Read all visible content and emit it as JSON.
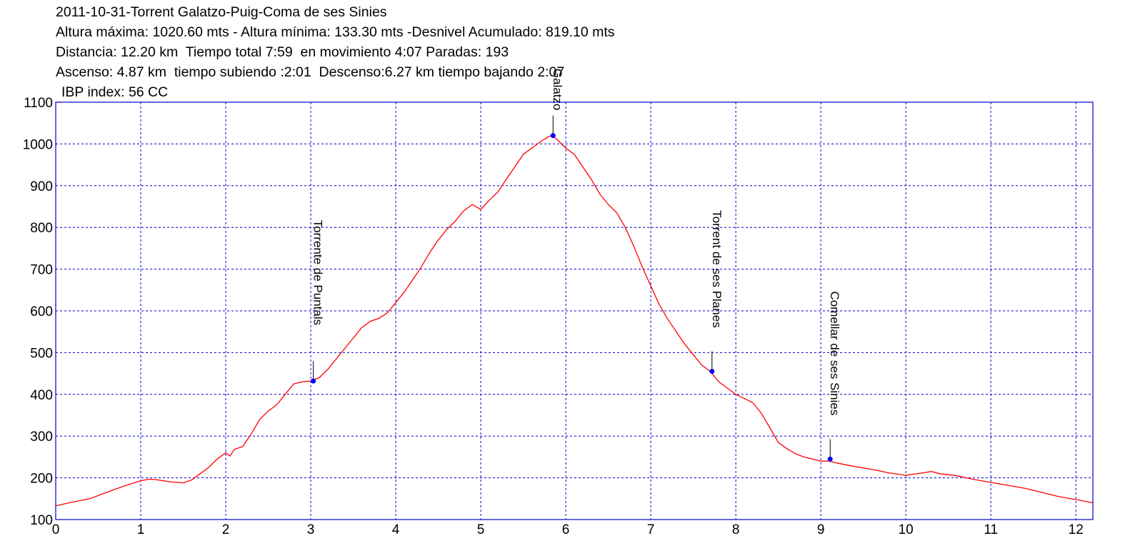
{
  "header": {
    "line1": "2011-10-31-Torrent Galatzo-Puig-Coma de ses Sinies",
    "line2": "Altura máxima: 1020.60 mts - Altura mínima: 133.30 mts -Desnivel Acumulado: 819.10 mts",
    "line3": "Distancia: 12.20 km  Tiempo total 7:59  en movimiento 4:07 Paradas: 193",
    "line4": "Ascenso: 4.87 km  tiempo subiendo :2:01  Descenso:6.27 km tiempo bajando 2:07",
    "line5": "IBP index: 56 CC"
  },
  "colors": {
    "profile_line": "#ff0000",
    "grid": "#0000cc",
    "frame": "#0000cc",
    "waypoint": "#0000ff"
  },
  "chart_data": {
    "type": "line",
    "title": "2011-10-31-Torrent Galatzo-Puig-Coma de ses Sinies",
    "xlabel": "",
    "ylabel": "",
    "xlim": [
      0,
      12.2
    ],
    "ylim": [
      100,
      1100
    ],
    "x_ticks": [
      "0",
      "1",
      "2",
      "3",
      "4",
      "5",
      "6",
      "7",
      "8",
      "9",
      "10",
      "11",
      "12"
    ],
    "y_ticks": [
      "100",
      "200",
      "300",
      "400",
      "500",
      "600",
      "700",
      "800",
      "900",
      "1000",
      "1100"
    ],
    "grid": true,
    "series": [
      {
        "x": [
          0,
          0.2,
          0.4,
          0.6,
          0.8,
          1.0,
          1.1,
          1.2,
          1.35,
          1.5,
          1.6,
          1.7,
          1.8,
          1.9,
          2.0,
          2.05,
          2.1,
          2.2,
          2.3,
          2.4,
          2.5,
          2.6,
          2.7,
          2.8,
          2.9,
          3.0,
          3.1,
          3.2,
          3.3,
          3.4,
          3.5,
          3.6,
          3.7,
          3.8,
          3.9,
          4.0,
          4.1,
          4.2,
          4.3,
          4.4,
          4.5,
          4.6,
          4.7,
          4.8,
          4.9,
          5.0,
          5.1,
          5.2,
          5.3,
          5.4,
          5.5,
          5.6,
          5.7,
          5.8,
          5.85,
          5.9,
          6.0,
          6.1,
          6.2,
          6.3,
          6.4,
          6.5,
          6.6,
          6.7,
          6.8,
          6.9,
          7.0,
          7.1,
          7.2,
          7.3,
          7.4,
          7.5,
          7.6,
          7.7,
          7.8,
          7.9,
          8.0,
          8.1,
          8.2,
          8.3,
          8.4,
          8.5,
          8.6,
          8.7,
          8.8,
          8.9,
          9.0,
          9.1,
          9.2,
          9.4,
          9.6,
          9.8,
          10.0,
          10.2,
          10.3,
          10.4,
          10.6,
          10.8,
          11.0,
          11.2,
          11.4,
          11.6,
          11.8,
          12.0,
          12.2
        ],
        "values": [
          133,
          142,
          150,
          165,
          180,
          193,
          197,
          195,
          190,
          188,
          195,
          210,
          225,
          245,
          260,
          252,
          268,
          275,
          305,
          340,
          360,
          375,
          400,
          425,
          430,
          432,
          440,
          460,
          485,
          510,
          535,
          560,
          575,
          582,
          595,
          620,
          645,
          675,
          705,
          740,
          770,
          795,
          815,
          840,
          855,
          843,
          865,
          885,
          915,
          945,
          975,
          990,
          1005,
          1018,
          1020,
          1010,
          990,
          975,
          945,
          915,
          880,
          855,
          835,
          800,
          755,
          705,
          660,
          615,
          580,
          550,
          520,
          495,
          470,
          455,
          430,
          415,
          400,
          390,
          380,
          355,
          320,
          285,
          270,
          258,
          250,
          245,
          240,
          240,
          235,
          227,
          220,
          212,
          206,
          212,
          215,
          210,
          205,
          196,
          189,
          182,
          175,
          165,
          155,
          148,
          140
        ]
      }
    ],
    "waypoints": [
      {
        "name": "Torrente  de  Puntals",
        "x": 3.03,
        "y": 432
      },
      {
        "name": "Galatzo",
        "x": 5.85,
        "y": 1020
      },
      {
        "name": "Torrent de ses Planes",
        "x": 7.72,
        "y": 455
      },
      {
        "name": "Comellar de ses Sinies",
        "x": 9.11,
        "y": 245
      }
    ]
  }
}
